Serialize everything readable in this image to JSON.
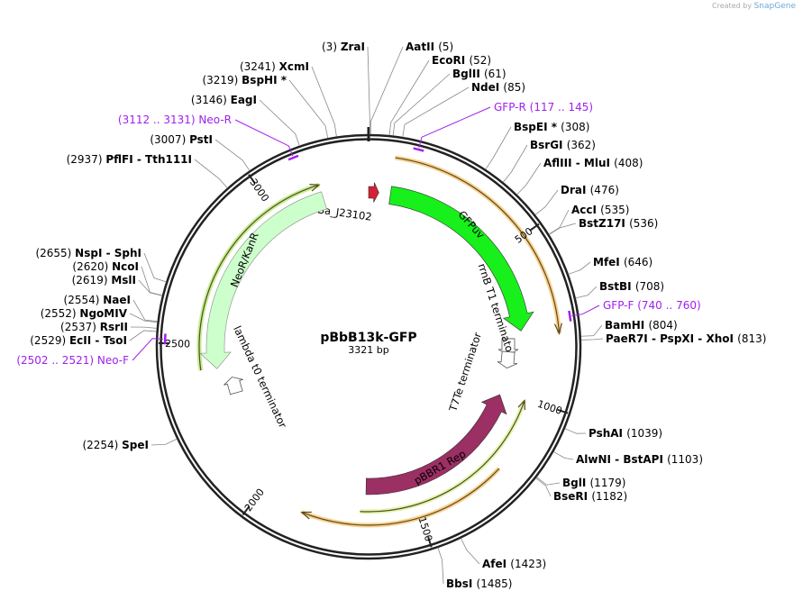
{
  "brand": {
    "prefix": "Created by",
    "name": "SnapGene"
  },
  "plasmid": {
    "name": "pBbB13k-GFP",
    "length": 3321,
    "length_label": "3321 bp"
  },
  "ticks": [
    "500",
    "1000",
    "1500",
    "2000",
    "2500",
    "3000"
  ],
  "features": [
    {
      "name": "BBa_J23102",
      "type": "promoter",
      "start": 0,
      "end": 35,
      "dir": 1,
      "color": "#d42035"
    },
    {
      "name": "GFPuv",
      "type": "cds",
      "start": 75,
      "end": 775,
      "dir": 1,
      "color": "#17f01a"
    },
    {
      "name": "rrnB T1 terminator",
      "type": "terminator",
      "pos": 830
    },
    {
      "name": "T7Te terminator",
      "type": "terminator",
      "pos": 880
    },
    {
      "name": "pBBR1 Rep",
      "type": "cds",
      "start": 1015,
      "end": 1670,
      "dir": -1,
      "color": "#9c2f63"
    },
    {
      "name": "NeoR/KanR",
      "type": "cds",
      "start": 2415,
      "end": 3165,
      "dir": -1,
      "color": "#ccffcc"
    },
    {
      "name": "lambda t0 terminator",
      "type": "terminator",
      "pos": 2345
    }
  ],
  "enzymes": [
    {
      "names": "ZraI",
      "pos": "(3)",
      "side": "left"
    },
    {
      "names": "XcmI",
      "pos": "(3241)",
      "side": "left"
    },
    {
      "names": "BspHI *",
      "pos": "(3219)",
      "side": "left"
    },
    {
      "names": "EagI",
      "pos": "(3146)",
      "side": "left"
    },
    {
      "names": "PstI",
      "pos": "(3007)",
      "side": "left"
    },
    {
      "names": "PflFI  - Tth111I",
      "pos": "(2937)",
      "side": "left"
    },
    {
      "names": "NspI  - SphI",
      "pos": "(2655)",
      "side": "left"
    },
    {
      "names": "NcoI",
      "pos": "(2620)",
      "side": "left"
    },
    {
      "names": "MslI",
      "pos": "(2619)",
      "side": "left"
    },
    {
      "names": "NaeI",
      "pos": "(2554)",
      "side": "left"
    },
    {
      "names": "NgoMIV",
      "pos": "(2552)",
      "side": "left"
    },
    {
      "names": "RsrII",
      "pos": "(2537)",
      "side": "left"
    },
    {
      "names": "EcII  - TsoI",
      "pos": "(2529)",
      "side": "left"
    },
    {
      "names": "SpeI",
      "pos": "(2254)",
      "side": "left"
    },
    {
      "names": "AatII",
      "pos": "(5)",
      "side": "right"
    },
    {
      "names": "EcoRI",
      "pos": "(52)",
      "side": "right"
    },
    {
      "names": "BglII",
      "pos": "(61)",
      "side": "right"
    },
    {
      "names": "NdeI",
      "pos": "(85)",
      "side": "right"
    },
    {
      "names": "BspEI *",
      "pos": "(308)",
      "side": "right"
    },
    {
      "names": "BsrGI",
      "pos": "(362)",
      "side": "right"
    },
    {
      "names": "AflIII  - MluI",
      "pos": "(408)",
      "side": "right"
    },
    {
      "names": "DraI",
      "pos": "(476)",
      "side": "right"
    },
    {
      "names": "AccI",
      "pos": "(535)",
      "side": "right"
    },
    {
      "names": "BstZ17I",
      "pos": "(536)",
      "side": "right"
    },
    {
      "names": "MfeI",
      "pos": "(646)",
      "side": "right"
    },
    {
      "names": "BstBI",
      "pos": "(708)",
      "side": "right"
    },
    {
      "names": "BamHI",
      "pos": "(804)",
      "side": "right"
    },
    {
      "names": "PaeR7I  - PspXI  - XhoI",
      "pos": "(813)",
      "side": "right"
    },
    {
      "names": "PshAI",
      "pos": "(1039)",
      "side": "right"
    },
    {
      "names": "AlwNI  - BstAPI",
      "pos": "(1103)",
      "side": "right"
    },
    {
      "names": "BglI",
      "pos": "(1179)",
      "side": "right"
    },
    {
      "names": "BseRI",
      "pos": "(1182)",
      "side": "right"
    },
    {
      "names": "AfeI",
      "pos": "(1423)",
      "side": "right"
    },
    {
      "names": "BbsI",
      "pos": "(1485)",
      "side": "right"
    }
  ],
  "primers": [
    {
      "name": "Neo-R",
      "range": "(3112 .. 3131)",
      "side": "left",
      "color": "#a020f0"
    },
    {
      "name": "Neo-F",
      "range": "(2502 .. 2521)",
      "side": "left",
      "color": "#a020f0"
    },
    {
      "name": "GFP-R",
      "range": "(117 .. 145)",
      "side": "right",
      "color": "#a020f0"
    },
    {
      "name": "GFP-F",
      "range": "(740 .. 760)",
      "side": "right",
      "color": "#a020f0"
    }
  ]
}
